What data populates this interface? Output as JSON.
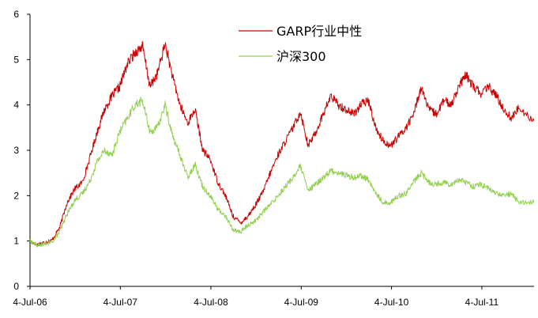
{
  "chart_data": {
    "type": "line",
    "title": "",
    "xlabel": "",
    "ylabel": "",
    "ylim": [
      0,
      6
    ],
    "yticks": [
      "0",
      "1",
      "2",
      "3",
      "4",
      "5",
      "6"
    ],
    "xticks": [
      "4-Jul-06",
      "4-Jul-07",
      "4-Jul-08",
      "4-Jul-09",
      "4-Jul-10",
      "4-Jul-11"
    ],
    "xrange": [
      "2006-07-04",
      "2012-01-31"
    ],
    "grid": false,
    "legend_position": "top-center",
    "series": [
      {
        "name": "GARP行业中性",
        "color": "#cc0000",
        "points": [
          [
            "2006-07-04",
            1.0
          ],
          [
            "2006-08-01",
            0.92
          ],
          [
            "2006-09-01",
            0.97
          ],
          [
            "2006-10-01",
            1.02
          ],
          [
            "2006-11-01",
            1.3
          ],
          [
            "2006-12-01",
            1.85
          ],
          [
            "2007-01-01",
            2.15
          ],
          [
            "2007-02-01",
            2.3
          ],
          [
            "2007-03-01",
            2.8
          ],
          [
            "2007-04-01",
            3.4
          ],
          [
            "2007-05-01",
            3.9
          ],
          [
            "2007-06-01",
            4.2
          ],
          [
            "2007-07-01",
            4.4
          ],
          [
            "2007-08-01",
            4.9
          ],
          [
            "2007-09-01",
            5.15
          ],
          [
            "2007-10-01",
            5.3
          ],
          [
            "2007-11-01",
            4.4
          ],
          [
            "2007-12-01",
            4.7
          ],
          [
            "2008-01-01",
            5.35
          ],
          [
            "2008-02-01",
            4.6
          ],
          [
            "2008-03-01",
            4.0
          ],
          [
            "2008-04-01",
            3.6
          ],
          [
            "2008-05-01",
            3.9
          ],
          [
            "2008-06-01",
            3.0
          ],
          [
            "2008-07-01",
            2.8
          ],
          [
            "2008-08-01",
            2.3
          ],
          [
            "2008-09-01",
            2.0
          ],
          [
            "2008-10-01",
            1.55
          ],
          [
            "2008-11-01",
            1.4
          ],
          [
            "2008-12-01",
            1.55
          ],
          [
            "2009-01-01",
            1.8
          ],
          [
            "2009-02-01",
            2.1
          ],
          [
            "2009-03-01",
            2.5
          ],
          [
            "2009-04-01",
            2.9
          ],
          [
            "2009-05-01",
            3.2
          ],
          [
            "2009-06-01",
            3.5
          ],
          [
            "2009-07-01",
            3.85
          ],
          [
            "2009-08-01",
            3.1
          ],
          [
            "2009-09-01",
            3.4
          ],
          [
            "2009-10-01",
            3.8
          ],
          [
            "2009-11-01",
            4.2
          ],
          [
            "2009-12-01",
            4.0
          ],
          [
            "2010-01-01",
            3.9
          ],
          [
            "2010-02-01",
            3.8
          ],
          [
            "2010-03-01",
            4.0
          ],
          [
            "2010-04-01",
            4.1
          ],
          [
            "2010-05-01",
            3.5
          ],
          [
            "2010-06-01",
            3.2
          ],
          [
            "2010-07-01",
            3.1
          ],
          [
            "2010-08-01",
            3.3
          ],
          [
            "2010-09-01",
            3.5
          ],
          [
            "2010-10-01",
            3.8
          ],
          [
            "2010-11-01",
            4.4
          ],
          [
            "2010-12-01",
            3.9
          ],
          [
            "2011-01-01",
            3.8
          ],
          [
            "2011-02-01",
            4.1
          ],
          [
            "2011-03-01",
            4.0
          ],
          [
            "2011-04-01",
            4.4
          ],
          [
            "2011-05-01",
            4.65
          ],
          [
            "2011-06-01",
            4.4
          ],
          [
            "2011-07-01",
            4.25
          ],
          [
            "2011-08-01",
            4.4
          ],
          [
            "2011-09-01",
            4.2
          ],
          [
            "2011-10-01",
            3.9
          ],
          [
            "2011-11-01",
            3.7
          ],
          [
            "2011-12-01",
            3.95
          ],
          [
            "2012-01-31",
            3.65
          ]
        ]
      },
      {
        "name": "沪深300",
        "color": "#92d050",
        "points": [
          [
            "2006-07-04",
            1.0
          ],
          [
            "2006-08-01",
            0.9
          ],
          [
            "2006-09-01",
            0.93
          ],
          [
            "2006-10-01",
            0.98
          ],
          [
            "2006-11-01",
            1.2
          ],
          [
            "2006-12-01",
            1.6
          ],
          [
            "2007-01-01",
            1.9
          ],
          [
            "2007-02-01",
            2.05
          ],
          [
            "2007-03-01",
            2.3
          ],
          [
            "2007-04-01",
            2.75
          ],
          [
            "2007-05-01",
            3.0
          ],
          [
            "2007-06-01",
            2.9
          ],
          [
            "2007-07-01",
            3.4
          ],
          [
            "2007-08-01",
            3.7
          ],
          [
            "2007-09-01",
            4.0
          ],
          [
            "2007-10-01",
            4.1
          ],
          [
            "2007-11-01",
            3.4
          ],
          [
            "2007-12-01",
            3.5
          ],
          [
            "2008-01-01",
            4.0
          ],
          [
            "2008-02-01",
            3.3
          ],
          [
            "2008-03-01",
            2.9
          ],
          [
            "2008-04-01",
            2.4
          ],
          [
            "2008-05-01",
            2.7
          ],
          [
            "2008-06-01",
            2.2
          ],
          [
            "2008-07-01",
            2.0
          ],
          [
            "2008-08-01",
            1.7
          ],
          [
            "2008-09-01",
            1.55
          ],
          [
            "2008-10-01",
            1.25
          ],
          [
            "2008-11-01",
            1.2
          ],
          [
            "2008-12-01",
            1.35
          ],
          [
            "2009-01-01",
            1.45
          ],
          [
            "2009-02-01",
            1.65
          ],
          [
            "2009-03-01",
            1.8
          ],
          [
            "2009-04-01",
            2.0
          ],
          [
            "2009-05-01",
            2.2
          ],
          [
            "2009-06-01",
            2.4
          ],
          [
            "2009-07-01",
            2.65
          ],
          [
            "2009-08-01",
            2.1
          ],
          [
            "2009-09-01",
            2.25
          ],
          [
            "2009-10-01",
            2.4
          ],
          [
            "2009-11-01",
            2.55
          ],
          [
            "2009-12-01",
            2.5
          ],
          [
            "2010-01-01",
            2.45
          ],
          [
            "2010-02-01",
            2.4
          ],
          [
            "2010-03-01",
            2.45
          ],
          [
            "2010-04-01",
            2.35
          ],
          [
            "2010-05-01",
            2.05
          ],
          [
            "2010-06-01",
            1.85
          ],
          [
            "2010-07-01",
            1.85
          ],
          [
            "2010-08-01",
            2.0
          ],
          [
            "2010-09-01",
            2.05
          ],
          [
            "2010-10-01",
            2.3
          ],
          [
            "2010-11-01",
            2.5
          ],
          [
            "2010-12-01",
            2.3
          ],
          [
            "2011-01-01",
            2.25
          ],
          [
            "2011-02-01",
            2.3
          ],
          [
            "2011-03-01",
            2.25
          ],
          [
            "2011-04-01",
            2.35
          ],
          [
            "2011-05-01",
            2.3
          ],
          [
            "2011-06-01",
            2.2
          ],
          [
            "2011-07-01",
            2.25
          ],
          [
            "2011-08-01",
            2.15
          ],
          [
            "2011-09-01",
            2.05
          ],
          [
            "2011-10-01",
            2.0
          ],
          [
            "2011-11-01",
            2.05
          ],
          [
            "2011-12-01",
            1.85
          ],
          [
            "2012-01-31",
            1.85
          ]
        ]
      }
    ]
  }
}
